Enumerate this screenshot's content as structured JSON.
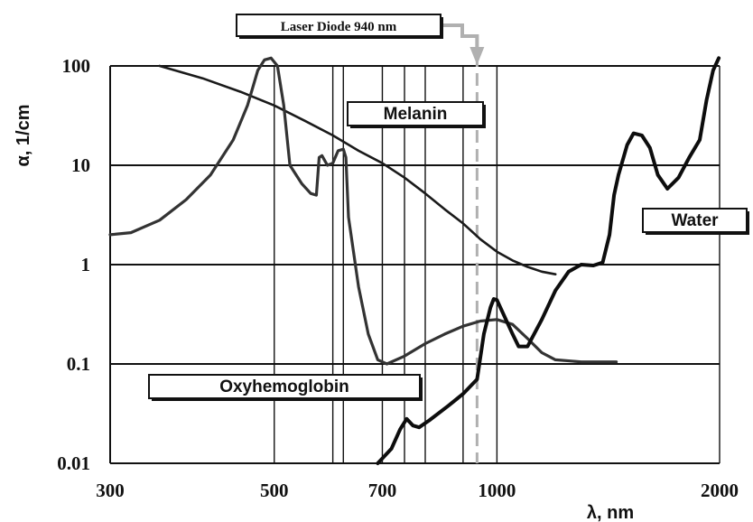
{
  "chart_data": {
    "type": "line",
    "title": "",
    "xlabel": "λ, nm",
    "ylabel": "α, 1/cm",
    "xscale": "log",
    "yscale": "log",
    "xlim": [
      300,
      2000
    ],
    "ylim": [
      0.01,
      100
    ],
    "grid": true,
    "x_gridlines": [
      500,
      600,
      620,
      700,
      750,
      800,
      900,
      1000,
      2000
    ],
    "y_gridlines": [
      0.01,
      0.1,
      1,
      10,
      100
    ],
    "x_tick_labels": [
      {
        "value": 300,
        "label": "300"
      },
      {
        "value": 500,
        "label": "500"
      },
      {
        "value": 700,
        "label": "700"
      },
      {
        "value": 1000,
        "label": "1000"
      },
      {
        "value": 2000,
        "label": "2000"
      }
    ],
    "y_tick_labels": [
      {
        "value": 100,
        "label": "100"
      },
      {
        "value": 10,
        "label": "10"
      },
      {
        "value": 1,
        "label": "1"
      },
      {
        "value": 0.1,
        "label": "0.1"
      },
      {
        "value": 0.01,
        "label": "0.01"
      }
    ],
    "series": [
      {
        "name": "Melanin",
        "color": "#1a1a1a",
        "points": [
          [
            350,
            100
          ],
          [
            400,
            75
          ],
          [
            450,
            55
          ],
          [
            500,
            40
          ],
          [
            550,
            28
          ],
          [
            600,
            20
          ],
          [
            650,
            14
          ],
          [
            700,
            10.5
          ],
          [
            750,
            7.5
          ],
          [
            800,
            5.2
          ],
          [
            850,
            3.6
          ],
          [
            900,
            2.6
          ],
          [
            950,
            1.8
          ],
          [
            1000,
            1.35
          ],
          [
            1050,
            1.1
          ],
          [
            1100,
            0.95
          ],
          [
            1150,
            0.85
          ],
          [
            1200,
            0.8
          ]
        ]
      },
      {
        "name": "Oxyhemoglobin",
        "color": "#333333",
        "points": [
          [
            300,
            2.0
          ],
          [
            320,
            2.1
          ],
          [
            350,
            2.8
          ],
          [
            380,
            4.5
          ],
          [
            410,
            8
          ],
          [
            440,
            18
          ],
          [
            460,
            40
          ],
          [
            475,
            90
          ],
          [
            485,
            115
          ],
          [
            495,
            120
          ],
          [
            505,
            100
          ],
          [
            515,
            40
          ],
          [
            525,
            10
          ],
          [
            545,
            6.5
          ],
          [
            560,
            5.2
          ],
          [
            570,
            5.0
          ],
          [
            575,
            12
          ],
          [
            580,
            12.5
          ],
          [
            590,
            10
          ],
          [
            600,
            10.5
          ],
          [
            610,
            14
          ],
          [
            620,
            14.5
          ],
          [
            625,
            12
          ],
          [
            630,
            3
          ],
          [
            650,
            0.6
          ],
          [
            670,
            0.2
          ],
          [
            690,
            0.11
          ],
          [
            710,
            0.1
          ],
          [
            750,
            0.12
          ],
          [
            800,
            0.16
          ],
          [
            850,
            0.2
          ],
          [
            900,
            0.24
          ],
          [
            950,
            0.27
          ],
          [
            1000,
            0.28
          ],
          [
            1050,
            0.25
          ],
          [
            1100,
            0.18
          ],
          [
            1150,
            0.13
          ],
          [
            1200,
            0.11
          ],
          [
            1300,
            0.105
          ],
          [
            1450,
            0.105
          ]
        ]
      },
      {
        "name": "Water",
        "color": "#0d0d0d",
        "points": [
          [
            690,
            0.01
          ],
          [
            720,
            0.014
          ],
          [
            740,
            0.022
          ],
          [
            755,
            0.028
          ],
          [
            770,
            0.024
          ],
          [
            785,
            0.023
          ],
          [
            810,
            0.027
          ],
          [
            860,
            0.038
          ],
          [
            900,
            0.05
          ],
          [
            940,
            0.07
          ],
          [
            960,
            0.2
          ],
          [
            980,
            0.37
          ],
          [
            990,
            0.45
          ],
          [
            1000,
            0.44
          ],
          [
            1020,
            0.32
          ],
          [
            1050,
            0.2
          ],
          [
            1070,
            0.15
          ],
          [
            1100,
            0.15
          ],
          [
            1150,
            0.28
          ],
          [
            1200,
            0.55
          ],
          [
            1250,
            0.85
          ],
          [
            1300,
            1.0
          ],
          [
            1350,
            0.98
          ],
          [
            1390,
            1.05
          ],
          [
            1420,
            2
          ],
          [
            1440,
            5
          ],
          [
            1460,
            8
          ],
          [
            1500,
            16
          ],
          [
            1530,
            21
          ],
          [
            1570,
            20
          ],
          [
            1610,
            15
          ],
          [
            1650,
            8
          ],
          [
            1700,
            5.8
          ],
          [
            1760,
            7.5
          ],
          [
            1820,
            12
          ],
          [
            1880,
            18
          ],
          [
            1920,
            45
          ],
          [
            1960,
            90
          ],
          [
            1995,
            120
          ]
        ]
      }
    ],
    "annotations": [
      {
        "text": "Melanin",
        "series": "Melanin"
      },
      {
        "text": "Oxyhemoglobin",
        "series": "Oxyhemoglobin"
      },
      {
        "text": "Water",
        "series": "Water"
      },
      {
        "text": "Laser Diode 940 nm",
        "x": 940
      }
    ],
    "marker_line": {
      "x": 940,
      "color": "#b0b0b0",
      "dashed": true
    }
  }
}
